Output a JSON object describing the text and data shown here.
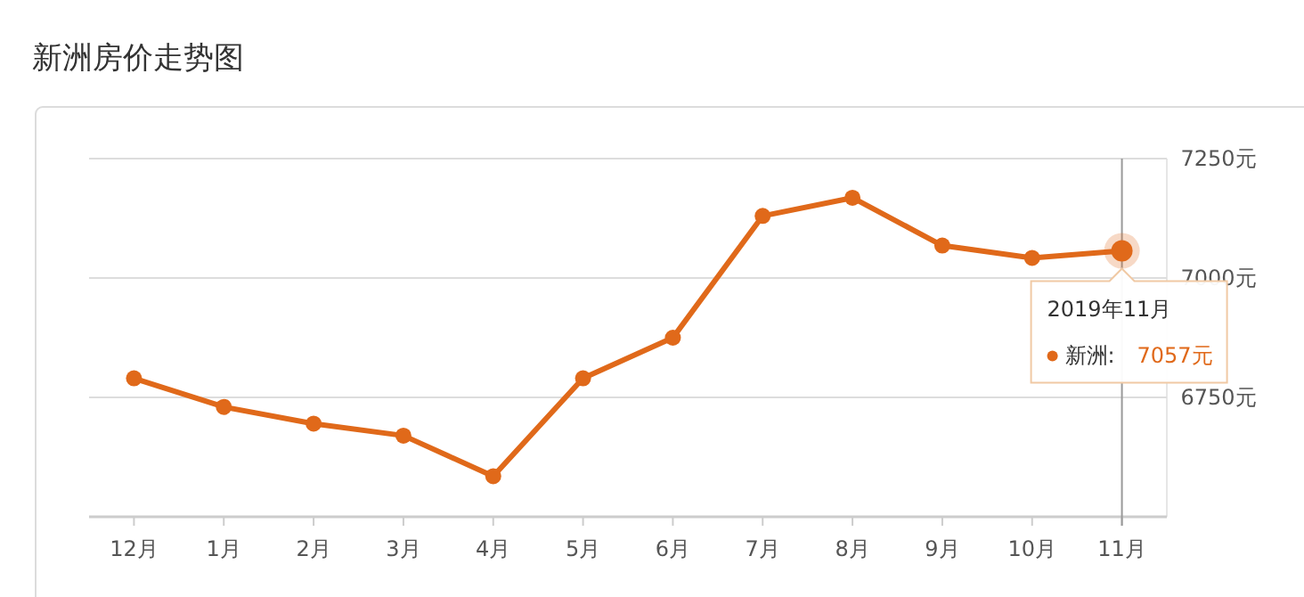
{
  "chart_data": {
    "type": "line",
    "title": "新洲房价走势图",
    "categories": [
      "12月",
      "1月",
      "2月",
      "3月",
      "4月",
      "5月",
      "6月",
      "7月",
      "8月",
      "9月",
      "10月",
      "11月"
    ],
    "series": [
      {
        "color": "#e0691a",
        "values": [
          6790,
          6730,
          6695,
          6670,
          6585,
          6790,
          6875,
          7130,
          7168,
          7068,
          7042,
          7057
        ]
      }
    ],
    "ylim": [
      6500,
      7250
    ],
    "yticks": [
      {
        "value": 6750,
        "label": "6750元"
      },
      {
        "value": 7000,
        "label": "7000元"
      },
      {
        "value": 7250,
        "label": "7250元"
      }
    ],
    "grid": "y",
    "marker": "circle",
    "line_style": "solid",
    "ref_lines": [
      {
        "axis": "x",
        "value": "11月"
      }
    ],
    "annotations": [
      {
        "text": "2019年11月",
        "x": "11月",
        "y": 7057
      },
      "新洲:",
      "7057元"
    ]
  }
}
